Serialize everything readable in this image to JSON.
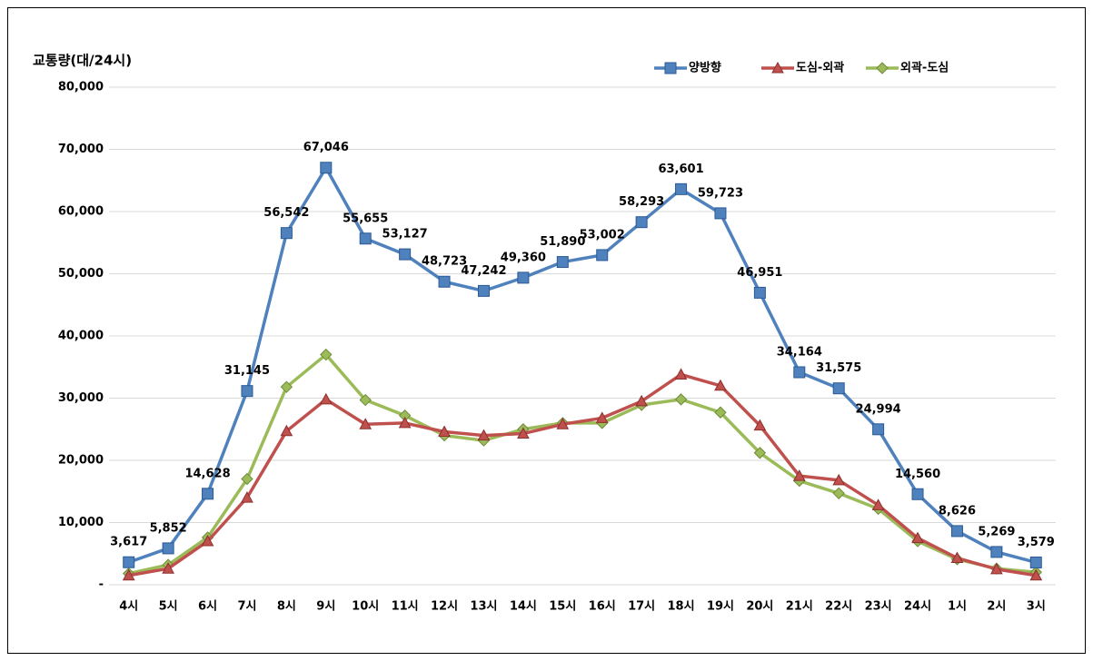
{
  "chart_data": {
    "type": "line",
    "y_label": "교통량(대/24시)",
    "categories": [
      "4시",
      "5시",
      "6시",
      "7시",
      "8시",
      "9시",
      "10시",
      "11시",
      "12시",
      "13시",
      "14시",
      "15시",
      "16시",
      "17시",
      "18시",
      "19시",
      "20시",
      "21시",
      "22시",
      "23시",
      "24시",
      "1시",
      "2시",
      "3시"
    ],
    "series": [
      {
        "name": "양방향",
        "color": "#4f81bd",
        "marker": "square",
        "values": [
          3617,
          5852,
          14628,
          31145,
          56542,
          67046,
          55655,
          53127,
          48723,
          47242,
          49360,
          51890,
          53002,
          58293,
          63601,
          59723,
          46951,
          34164,
          31575,
          24994,
          14560,
          8626,
          5269,
          3579
        ],
        "value_labels": [
          "3,617",
          "5,852",
          "14,628",
          "31,145",
          "56,542",
          "67,046",
          "55,655",
          "53,127",
          "48,723",
          "47,242",
          "49,360",
          "51,890",
          "53,002",
          "58,293",
          "63,601",
          "59,723",
          "46,951",
          "34,164",
          "31,575",
          "24,994",
          "14,560",
          "8,626",
          "5,269",
          "3,579"
        ]
      },
      {
        "name": "도심-외곽",
        "color": "#c0504d",
        "marker": "triangle",
        "values": [
          1500,
          2600,
          7000,
          14000,
          24700,
          29800,
          25800,
          26000,
          24600,
          24000,
          24300,
          25800,
          26800,
          29500,
          33800,
          32000,
          25600,
          17500,
          16800,
          12800,
          7500,
          4300,
          2500,
          1500
        ]
      },
      {
        "name": "외곽-도심",
        "color": "#9bbb59",
        "marker": "diamond",
        "values": [
          1800,
          3200,
          7600,
          17000,
          31800,
          37000,
          29700,
          27200,
          24000,
          23200,
          25000,
          26000,
          26000,
          28900,
          29800,
          27700,
          21200,
          16700,
          14700,
          12200,
          7000,
          4100,
          2600,
          2000
        ]
      }
    ],
    "ylim": [
      0,
      80000
    ],
    "yticks": [
      {
        "value": 0,
        "label": "-"
      },
      {
        "value": 10000,
        "label": "10,000"
      },
      {
        "value": 20000,
        "label": "20,000"
      },
      {
        "value": 30000,
        "label": "30,000"
      },
      {
        "value": 40000,
        "label": "40,000"
      },
      {
        "value": 50000,
        "label": "50,000"
      },
      {
        "value": 60000,
        "label": "60,000"
      },
      {
        "value": 70000,
        "label": "70,000"
      },
      {
        "value": 80000,
        "label": "80,000"
      }
    ],
    "grid": true,
    "legend": "top-right"
  }
}
